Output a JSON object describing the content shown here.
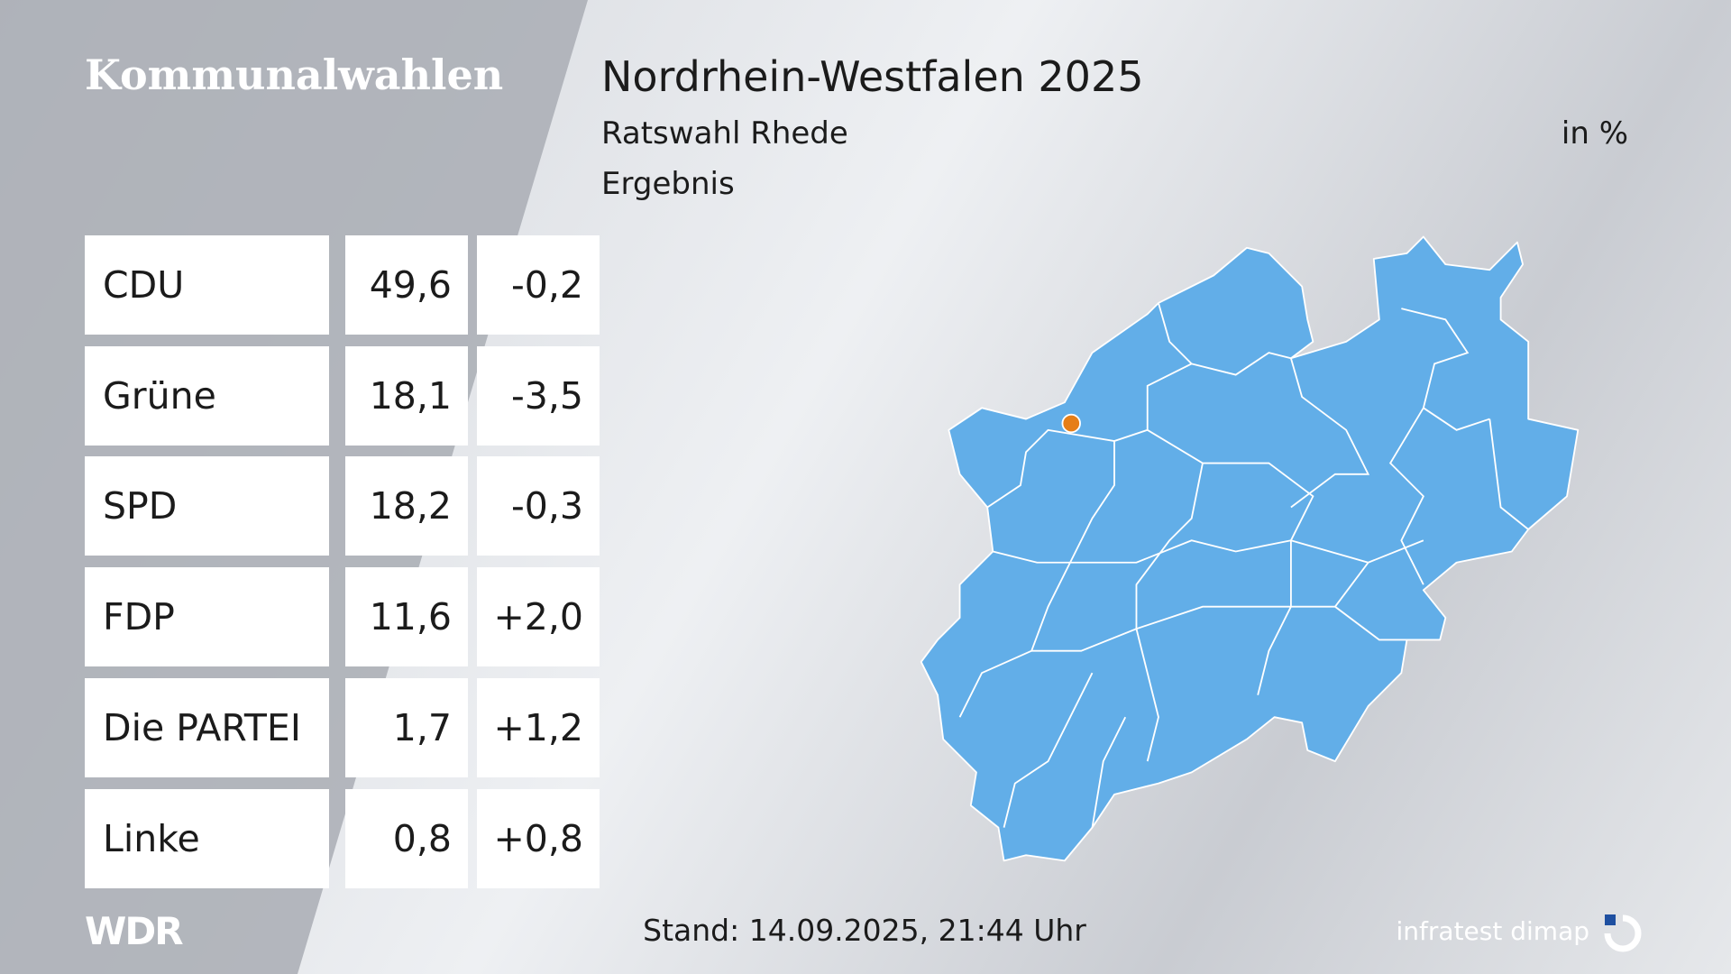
{
  "header": {
    "section": "Kommunalwahlen",
    "title": "Nordrhein-Westfalen 2025",
    "subtitle": "Ratswahl Rhede",
    "unit": "in %",
    "status": "Ergebnis"
  },
  "table": {
    "rows": [
      [
        "CDU",
        "49,6",
        "-0,2"
      ],
      [
        "Grüne",
        "18,1",
        "-3,5"
      ],
      [
        "SPD",
        "18,2",
        "-0,3"
      ],
      [
        "FDP",
        "11,6",
        "+2,0"
      ],
      [
        "Die PARTEI",
        "1,7",
        "+1,2"
      ],
      [
        "Linke",
        "0,8",
        "+0,8"
      ]
    ]
  },
  "footer": {
    "logo": "WDR",
    "stand": "Stand: 14.09.2025, 21:44 Uhr",
    "source": "infratest dimap"
  }
}
